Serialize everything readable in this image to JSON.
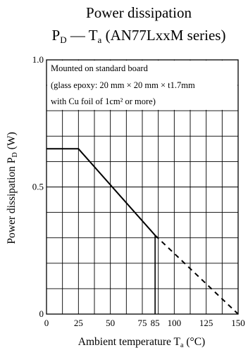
{
  "chart_data": {
    "type": "line",
    "title_line1": "Power dissipation",
    "title_line2": {
      "p": "P",
      "p_sub": "D",
      "dash": " — ",
      "t": "T",
      "t_sub": "a",
      "rest": " (AN77LxxM series)"
    },
    "annotation": [
      "Mounted on standard board",
      "(glass epoxy: 20 mm × 20 mm × t1.7mm",
      "with Cu foil of 1cm² or more)"
    ],
    "xlabel": {
      "main": "Ambient temperature  T",
      "sub": "a",
      "unit": "  (°C)"
    },
    "ylabel": {
      "main": "Power dissipation  P",
      "sub": "D",
      "unit": "  (W)"
    },
    "xlim": [
      0,
      150
    ],
    "ylim": [
      0,
      1.0
    ],
    "x_ticks": [
      {
        "value": 0,
        "label": "0"
      },
      {
        "value": 25,
        "label": "25"
      },
      {
        "value": 50,
        "label": "50"
      },
      {
        "value": 75,
        "label": "75"
      },
      {
        "value": 85,
        "label": "85"
      },
      {
        "value": 100,
        "label": "100"
      },
      {
        "value": 125,
        "label": "125"
      },
      {
        "value": 150,
        "label": "150"
      }
    ],
    "y_ticks": [
      {
        "value": 0,
        "label": "0"
      },
      {
        "value": 0.5,
        "label": "0.5"
      },
      {
        "value": 1.0,
        "label": "1.0"
      }
    ],
    "grid": true,
    "grid_x": [
      12.5,
      25,
      37.5,
      50,
      62.5,
      75,
      87.5,
      100,
      112.5,
      125,
      137.5
    ],
    "grid_y": [
      0.1,
      0.2,
      0.3,
      0.4,
      0.5,
      0.6,
      0.7,
      0.8,
      0.9
    ],
    "series": [
      {
        "style": "solid",
        "points": [
          [
            0,
            0.65
          ],
          [
            25,
            0.65
          ],
          [
            85,
            0.31
          ]
        ]
      },
      {
        "style": "dashed",
        "points": [
          [
            85,
            0.31
          ],
          [
            150,
            0
          ]
        ]
      }
    ],
    "marker_line": {
      "x": 85,
      "y_from": 0,
      "y_to": 0.31
    }
  }
}
